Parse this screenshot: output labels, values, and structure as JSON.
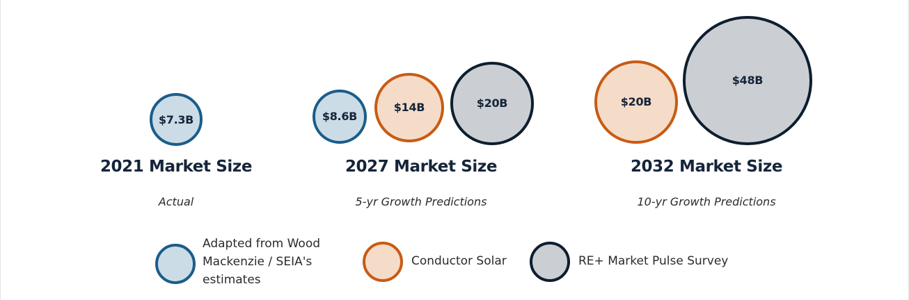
{
  "colors": {
    "wood_fill": "#ccdce6",
    "wood_stroke": "#1a5d8a",
    "conductor_fill": "#f5dcc8",
    "conductor_stroke": "#c85b14",
    "re_fill": "#cbcfd3",
    "re_stroke": "#0e1e2e",
    "text": "#15253a"
  },
  "chart_data": {
    "type": "bubble",
    "unit": "$B",
    "groups": [
      {
        "title": "2021 Market Size",
        "subtitle": "Actual",
        "bubbles": [
          {
            "series": "wood",
            "value": 7.3,
            "label": "$7.3B"
          }
        ]
      },
      {
        "title": "2027 Market Size",
        "subtitle": "5-yr Growth Predictions",
        "bubbles": [
          {
            "series": "wood",
            "value": 8.6,
            "label": "$8.6B"
          },
          {
            "series": "conductor",
            "value": 14,
            "label": "$14B"
          },
          {
            "series": "re",
            "value": 20,
            "label": "$20B"
          }
        ]
      },
      {
        "title": "2032 Market Size",
        "subtitle": "10-yr Growth Predictions",
        "bubbles": [
          {
            "series": "conductor",
            "value": 20,
            "label": "$20B"
          },
          {
            "series": "re",
            "value": 48,
            "label": "$48B"
          }
        ]
      }
    ],
    "legend": [
      {
        "series": "wood",
        "label": "Adapted from Wood Mackenzie / SEIA's estimates"
      },
      {
        "series": "conductor",
        "label": "Conductor Solar"
      },
      {
        "series": "re",
        "label": "RE+ Market Pulse Survey"
      }
    ]
  }
}
